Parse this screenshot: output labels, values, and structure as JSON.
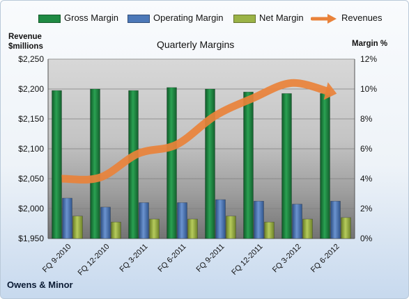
{
  "colors": {
    "gross": "#1f8a43",
    "operating": "#4c78b8",
    "net": "#9bb346",
    "revenue": "#e9823a"
  },
  "legend": [
    {
      "label": "Gross Margin",
      "color": "#1f8a43",
      "kind": "bar"
    },
    {
      "label": "Operating Margin",
      "color": "#4c78b8",
      "kind": "bar"
    },
    {
      "label": "Net Margin",
      "color": "#9bb346",
      "kind": "bar"
    },
    {
      "label": "Revenues",
      "color": "#e9823a",
      "kind": "arrow"
    }
  ],
  "chart_data": {
    "type": "bar",
    "title": "Quarterly Margins",
    "ylabel_left": "Revenue $millions",
    "ylabel_right": "Margin %",
    "company": "Owens & Minor",
    "categories": [
      "FQ 9-2010",
      "FQ 12-2010",
      "FQ 3-2011",
      "FQ 6-2011",
      "FQ 9-2011",
      "FQ 12-2011",
      "FQ 3-2012",
      "FQ 6-2012"
    ],
    "series": [
      {
        "name": "Gross Margin",
        "axis": "right",
        "values": [
          9.9,
          10.0,
          9.9,
          10.1,
          10.0,
          9.8,
          9.7,
          9.7
        ]
      },
      {
        "name": "Operating Margin",
        "axis": "right",
        "values": [
          2.7,
          2.1,
          2.4,
          2.4,
          2.6,
          2.5,
          2.3,
          2.5
        ]
      },
      {
        "name": "Net Margin",
        "axis": "right",
        "values": [
          1.5,
          1.1,
          1.3,
          1.3,
          1.5,
          1.1,
          1.3,
          1.4
        ]
      },
      {
        "name": "Revenues",
        "axis": "left",
        "type": "line",
        "values": [
          2050,
          2052,
          2092,
          2107,
          2155,
          2185,
          2210,
          2195
        ]
      }
    ],
    "ylim_left": [
      1950,
      2250
    ],
    "ylim_right": [
      0,
      12
    ],
    "left_ticks": [
      "$1,950",
      "$2,000",
      "$2,050",
      "$2,100",
      "$2,150",
      "$2,200",
      "$2,250"
    ],
    "right_ticks": [
      "0%",
      "2%",
      "4%",
      "6%",
      "8%",
      "10%",
      "12%"
    ],
    "grid": true,
    "legend_position": "top"
  }
}
